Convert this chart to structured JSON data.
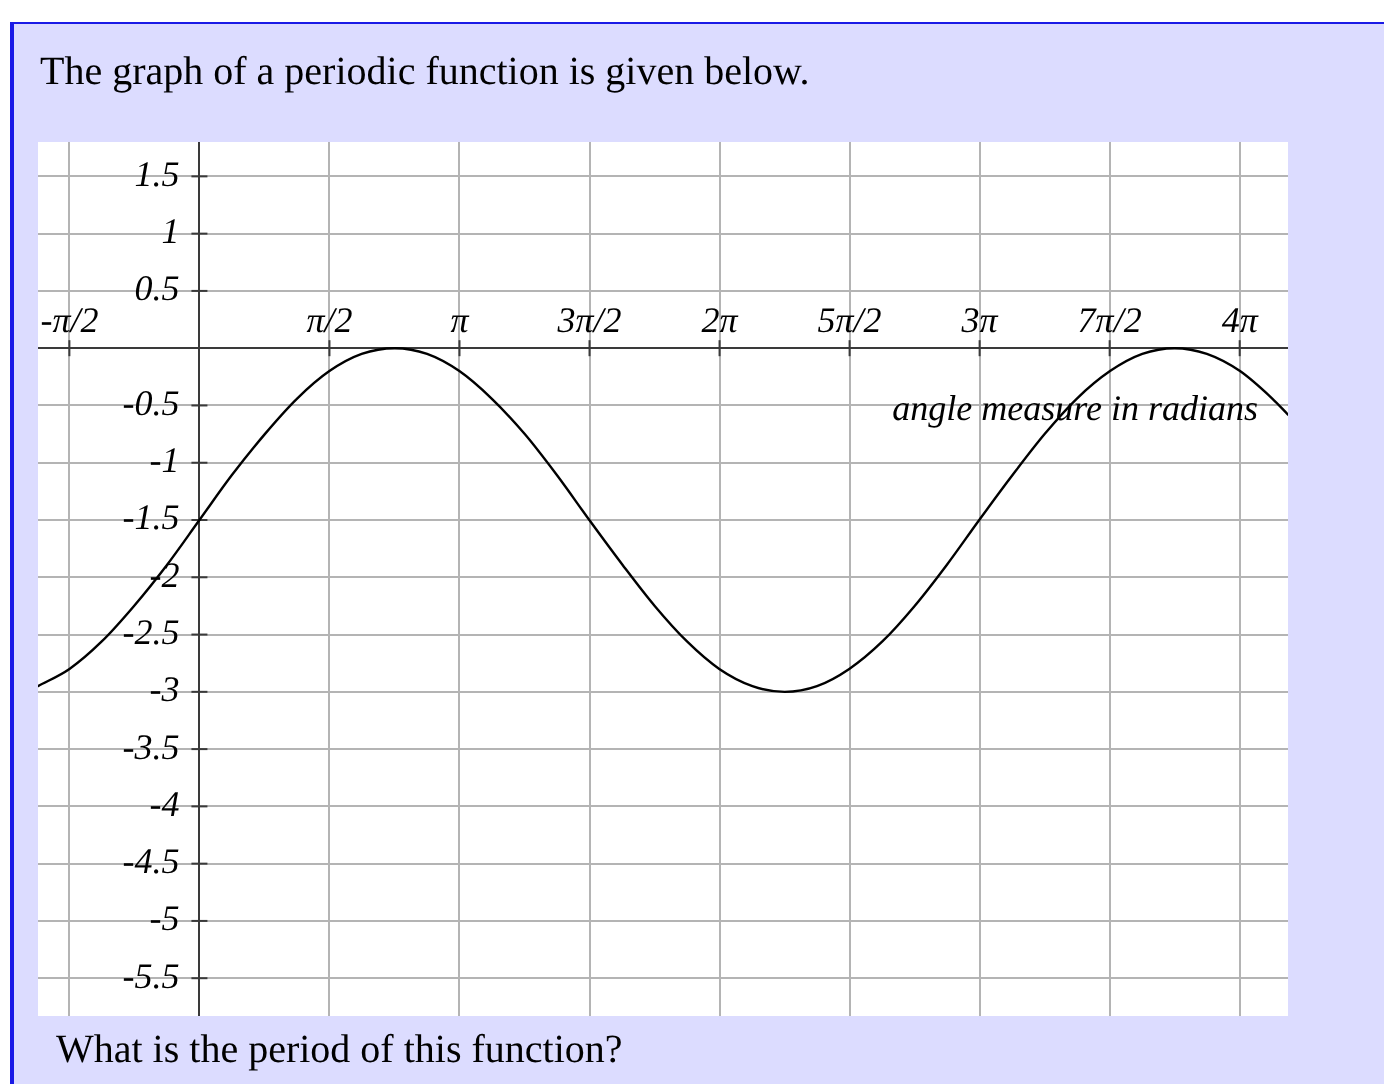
{
  "chart_data": {
    "type": "line",
    "title": "The graph of a periodic function is given below.",
    "xlabel": "angle measure in radians",
    "annotations": [
      "What is the period of this function?"
    ],
    "x": [
      -1.95,
      -1.57,
      -1.18,
      -0.79,
      -0.39,
      0,
      0.39,
      0.79,
      1.18,
      1.57,
      1.96,
      2.36,
      2.75,
      3.14,
      3.53,
      3.93,
      4.32,
      4.71,
      5.11,
      5.5,
      5.89,
      6.28,
      6.68,
      7.07,
      7.46,
      7.85,
      8.25,
      8.64,
      9.03,
      9.42,
      9.82,
      10.21,
      10.6,
      11,
      11.39,
      11.78,
      12.17,
      12.57,
      12.96,
      13.15
    ],
    "values": [
      -2.95,
      -2.8,
      -2.56,
      -2.25,
      -1.89,
      -1.5,
      -1.11,
      -0.75,
      -0.44,
      -0.2,
      -0.05,
      0,
      -0.05,
      -0.2,
      -0.44,
      -0.75,
      -1.11,
      -1.5,
      -1.89,
      -2.25,
      -2.56,
      -2.8,
      -2.95,
      -3,
      -2.95,
      -2.8,
      -2.56,
      -2.25,
      -1.89,
      -1.5,
      -1.11,
      -0.75,
      -0.44,
      -0.2,
      -0.05,
      0,
      -0.05,
      -0.2,
      -0.44,
      -0.58
    ],
    "color": "#000000",
    "xlim": [
      -1.95,
      13.15
    ],
    "ylim": [
      -5.83,
      1.8
    ],
    "xticks": [
      {
        "value": -1.5708,
        "label": "-π/2"
      },
      {
        "value": 1.5708,
        "label": "π/2"
      },
      {
        "value": 3.1416,
        "label": "π"
      },
      {
        "value": 4.7124,
        "label": "3π/2"
      },
      {
        "value": 6.2832,
        "label": "2π"
      },
      {
        "value": 7.854,
        "label": "5π/2"
      },
      {
        "value": 9.4248,
        "label": "3π"
      },
      {
        "value": 10.9956,
        "label": "7π/2"
      },
      {
        "value": 12.5664,
        "label": "4π"
      }
    ],
    "yticks": [
      1.5,
      1,
      0.5,
      -0.5,
      -1,
      -1.5,
      -2,
      -2.5,
      -3,
      -3.5,
      -4,
      -4.5,
      -5,
      -5.5
    ],
    "grid": true
  }
}
